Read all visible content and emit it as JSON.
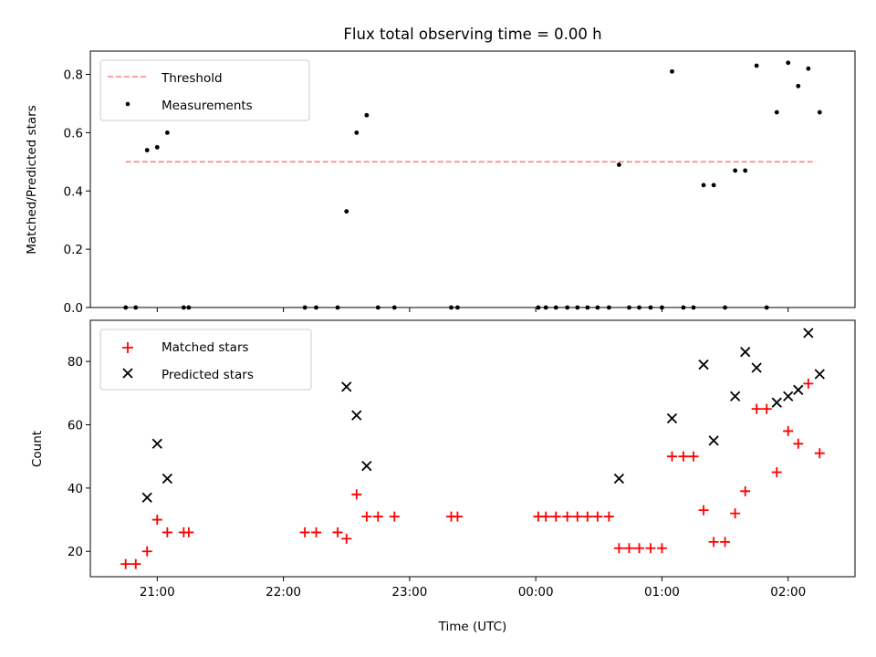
{
  "figure_title": "Flux total observing time = 0.00 h",
  "x_axis": {
    "label": "Time (UTC)",
    "tick_labels": [
      "21:00",
      "22:00",
      "23:00",
      "00:00",
      "01:00",
      "02:00"
    ],
    "tick_hours": [
      21,
      22,
      23,
      24,
      25,
      26
    ],
    "range_hours": [
      20.47,
      26.53
    ]
  },
  "chart_data": [
    {
      "type": "scatter",
      "ylabel": "Matched/Predicted stars",
      "ylim": [
        0,
        0.88
      ],
      "y_ticks": [
        0.0,
        0.2,
        0.4,
        0.6,
        0.8
      ],
      "y_tick_labels": [
        "0.0",
        "0.2",
        "0.4",
        "0.6",
        "0.8"
      ],
      "grid": false,
      "legend": {
        "placement": "top-left",
        "entries": [
          "Threshold",
          "Measurements"
        ]
      },
      "colors": {
        "threshold": "#ff8080",
        "measurements": "#000000"
      },
      "threshold": {
        "name": "Threshold",
        "x": [
          20.75,
          26.22
        ],
        "y": [
          0.5,
          0.5
        ]
      },
      "series": [
        {
          "name": "Measurements",
          "x": [
            20.75,
            20.83,
            20.92,
            21.0,
            21.08,
            21.21,
            21.25,
            22.17,
            22.26,
            22.43,
            22.5,
            22.58,
            22.66,
            22.75,
            22.88,
            23.33,
            23.38,
            24.02,
            24.08,
            24.16,
            24.25,
            24.33,
            24.41,
            24.49,
            24.58,
            24.66,
            24.74,
            24.82,
            24.91,
            25.0,
            25.08,
            25.17,
            25.25,
            25.33,
            25.41,
            25.5,
            25.58,
            25.66,
            25.75,
            25.83,
            25.91,
            26.0,
            26.08,
            26.16,
            26.25
          ],
          "y": [
            0,
            0,
            0.54,
            0.55,
            0.6,
            0,
            0,
            0,
            0,
            0,
            0.33,
            0.6,
            0.66,
            0,
            0,
            0,
            0,
            0,
            0,
            0,
            0,
            0,
            0,
            0,
            0,
            0.49,
            0,
            0,
            0,
            0,
            0.81,
            0,
            0,
            0.42,
            0.42,
            0,
            0.47,
            0.47,
            0.83,
            0,
            0.67,
            0.84,
            0.76,
            0.82,
            0.67
          ]
        }
      ]
    },
    {
      "type": "scatter",
      "ylabel": "Count",
      "ylim": [
        12,
        93
      ],
      "y_ticks": [
        20,
        40,
        60,
        80
      ],
      "y_tick_labels": [
        "20",
        "40",
        "60",
        "80"
      ],
      "grid": false,
      "legend": {
        "placement": "top-left",
        "entries": [
          "Matched stars",
          "Predicted stars"
        ]
      },
      "colors": {
        "matched": "#ff0000",
        "predicted": "#000000"
      },
      "series": [
        {
          "name": "Matched stars",
          "marker": "plus",
          "x": [
            20.75,
            20.83,
            20.92,
            21.0,
            21.08,
            21.21,
            21.25,
            22.17,
            22.26,
            22.43,
            22.5,
            22.58,
            22.66,
            22.75,
            22.88,
            23.33,
            23.38,
            24.02,
            24.08,
            24.16,
            24.25,
            24.33,
            24.41,
            24.49,
            24.58,
            24.66,
            24.74,
            24.82,
            24.91,
            25.0,
            25.08,
            25.17,
            25.25,
            25.33,
            25.41,
            25.5,
            25.58,
            25.66,
            25.75,
            25.83,
            25.91,
            26.0,
            26.08,
            26.16,
            26.25
          ],
          "y": [
            16,
            16,
            20,
            30,
            26,
            26,
            26,
            26,
            26,
            26,
            24,
            38,
            31,
            31,
            31,
            31,
            31,
            31,
            31,
            31,
            31,
            31,
            31,
            31,
            31,
            21,
            21,
            21,
            21,
            21,
            50,
            50,
            50,
            33,
            23,
            23,
            32,
            39,
            65,
            65,
            45,
            58,
            54,
            73,
            51
          ]
        },
        {
          "name": "Predicted stars",
          "marker": "x",
          "x": [
            20.92,
            21.0,
            21.08,
            22.5,
            22.58,
            22.66,
            24.66,
            25.08,
            25.33,
            25.41,
            25.58,
            25.66,
            25.75,
            25.91,
            26.0,
            26.08,
            26.16,
            26.25
          ],
          "y": [
            37,
            54,
            43,
            72,
            63,
            47,
            43,
            62,
            79,
            55,
            69,
            83,
            78,
            67,
            69,
            71,
            89,
            76
          ]
        }
      ]
    }
  ]
}
